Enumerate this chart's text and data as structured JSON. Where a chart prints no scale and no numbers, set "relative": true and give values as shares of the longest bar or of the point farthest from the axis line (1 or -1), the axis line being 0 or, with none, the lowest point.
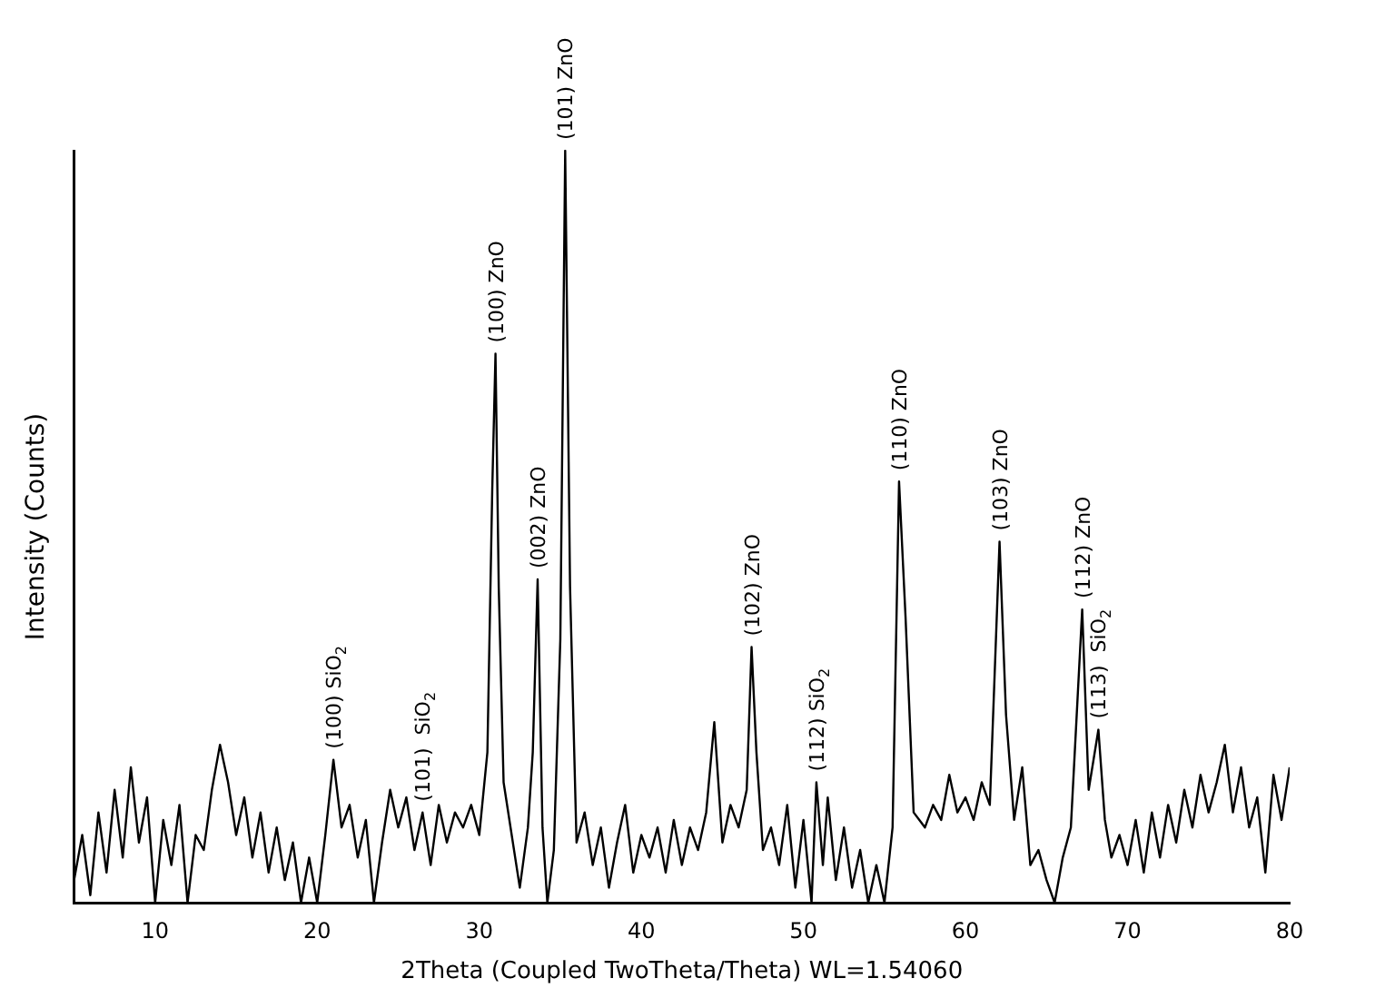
{
  "chart_data": {
    "type": "line",
    "relative": true,
    "xlabel": "2Theta (Coupled TwoTheta/Theta) WL=1.54060",
    "ylabel": "Intensity (Counts)",
    "xlim": [
      5,
      80
    ],
    "xticks": [
      10,
      20,
      30,
      40,
      50,
      60,
      70,
      80
    ],
    "grid": false,
    "legend": false,
    "marker": "none",
    "line_style": "solid",
    "series": [
      {
        "color": "#000000",
        "x": [
          5,
          5.5,
          6,
          6.5,
          7,
          7.5,
          8,
          8.5,
          9,
          9.5,
          10,
          10.5,
          11,
          11.5,
          12,
          12.5,
          13,
          13.5,
          14,
          14.5,
          15,
          15.5,
          16,
          16.5,
          17,
          17.5,
          18,
          18.5,
          19,
          19.5,
          20,
          20.5,
          21,
          21.5,
          22,
          22.5,
          23,
          23.5,
          24,
          24.5,
          25,
          25.5,
          26,
          26.5,
          27,
          27.5,
          28,
          28.5,
          29,
          29.5,
          30,
          30.5,
          30.8,
          31,
          31.2,
          31.5,
          32,
          32.5,
          33,
          33.3,
          33.6,
          33.9,
          34.2,
          34.6,
          35,
          35.3,
          35.6,
          36,
          36.5,
          37,
          37.5,
          38,
          38.5,
          39,
          39.5,
          40,
          40.5,
          41,
          41.5,
          42,
          42.5,
          43,
          43.5,
          44,
          44.5,
          45,
          45.5,
          46,
          46.5,
          46.8,
          47.1,
          47.5,
          48,
          48.5,
          49,
          49.5,
          50,
          50.5,
          50.8,
          51.2,
          51.5,
          52,
          52.5,
          53,
          53.5,
          54,
          54.5,
          55,
          55.5,
          55.9,
          56.3,
          56.8,
          57.5,
          58,
          58.5,
          59,
          59.5,
          60,
          60.5,
          61,
          61.5,
          62.1,
          62.5,
          63,
          63.5,
          64,
          64.5,
          65,
          65.5,
          66,
          66.5,
          67.2,
          67.6,
          68.2,
          68.6,
          69,
          69.5,
          70,
          70.5,
          71,
          71.5,
          72,
          72.5,
          73,
          73.5,
          74,
          74.5,
          75,
          75.5,
          76,
          76.5,
          77,
          77.5,
          78,
          78.5,
          79,
          79.5,
          80
        ],
        "values": [
          0.03,
          0.09,
          0.01,
          0.12,
          0.04,
          0.15,
          0.06,
          0.18,
          0.08,
          0.14,
          0.0,
          0.11,
          0.05,
          0.13,
          0.0,
          0.09,
          0.07,
          0.15,
          0.21,
          0.16,
          0.09,
          0.14,
          0.06,
          0.12,
          0.04,
          0.1,
          0.03,
          0.08,
          0.0,
          0.06,
          0.0,
          0.09,
          0.19,
          0.1,
          0.13,
          0.06,
          0.11,
          0.0,
          0.08,
          0.15,
          0.1,
          0.14,
          0.07,
          0.12,
          0.05,
          0.13,
          0.08,
          0.12,
          0.1,
          0.13,
          0.09,
          0.2,
          0.55,
          0.73,
          0.42,
          0.16,
          0.09,
          0.02,
          0.1,
          0.2,
          0.43,
          0.1,
          0.0,
          0.07,
          0.35,
          1.0,
          0.42,
          0.08,
          0.12,
          0.05,
          0.1,
          0.02,
          0.08,
          0.13,
          0.04,
          0.09,
          0.06,
          0.1,
          0.04,
          0.11,
          0.05,
          0.1,
          0.07,
          0.12,
          0.24,
          0.08,
          0.13,
          0.1,
          0.15,
          0.34,
          0.2,
          0.07,
          0.1,
          0.05,
          0.13,
          0.02,
          0.11,
          0.0,
          0.16,
          0.05,
          0.14,
          0.03,
          0.1,
          0.02,
          0.07,
          0.0,
          0.05,
          0.0,
          0.1,
          0.56,
          0.38,
          0.12,
          0.1,
          0.13,
          0.11,
          0.17,
          0.12,
          0.14,
          0.11,
          0.16,
          0.13,
          0.48,
          0.25,
          0.11,
          0.18,
          0.05,
          0.07,
          0.03,
          0.0,
          0.06,
          0.1,
          0.39,
          0.15,
          0.23,
          0.11,
          0.06,
          0.09,
          0.05,
          0.11,
          0.04,
          0.12,
          0.06,
          0.13,
          0.08,
          0.15,
          0.1,
          0.17,
          0.12,
          0.16,
          0.21,
          0.12,
          0.18,
          0.1,
          0.14,
          0.04,
          0.17,
          0.11,
          0.18
        ]
      }
    ],
    "annotations": [
      {
        "text": "(100) SiO$_{2}$",
        "x": 21,
        "y": 0.19
      },
      {
        "text": "(101)  SiO$_{2}$",
        "x": 26.5,
        "y": 0.12
      },
      {
        "text": "(100) ZnO",
        "x": 31,
        "y": 0.73
      },
      {
        "text": "(002) ZnO",
        "x": 33.6,
        "y": 0.43
      },
      {
        "text": "(101) ZnO",
        "x": 35.3,
        "y": 1.0
      },
      {
        "text": "(102) ZnO",
        "x": 46.8,
        "y": 0.34
      },
      {
        "text": "(112) SiO$_{2}$",
        "x": 50.8,
        "y": 0.16
      },
      {
        "text": "(110) ZnO",
        "x": 55.9,
        "y": 0.56
      },
      {
        "text": "(103) ZnO",
        "x": 62.1,
        "y": 0.48
      },
      {
        "text": "(112) ZnO",
        "x": 67.2,
        "y": 0.39
      },
      {
        "text": "(113)  SiO$_{2}$",
        "x": 68.2,
        "y": 0.23
      }
    ]
  }
}
